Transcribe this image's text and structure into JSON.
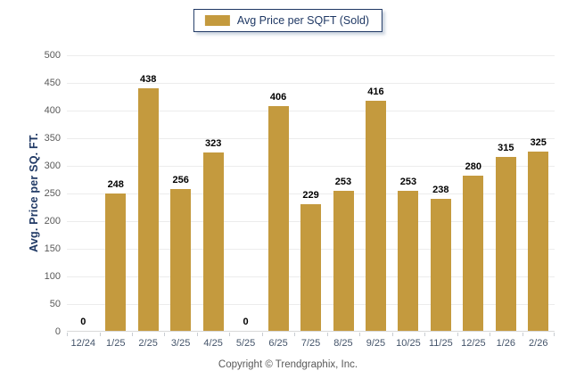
{
  "legend": {
    "label": "Avg Price per SQFT (Sold)",
    "swatch_color": "#C49A3E",
    "border_color": "#1F3864"
  },
  "chart_data": {
    "type": "bar",
    "title": "",
    "categories": [
      "12/24",
      "1/25",
      "2/25",
      "3/25",
      "4/25",
      "5/25",
      "6/25",
      "7/25",
      "8/25",
      "9/25",
      "10/25",
      "11/25",
      "12/25",
      "1/26",
      "2/26"
    ],
    "series": [
      {
        "name": "Avg Price per SQFT (Sold)",
        "values": [
          0,
          248,
          438,
          256,
          323,
          0,
          406,
          229,
          253,
          416,
          253,
          238,
          280,
          315,
          325
        ]
      }
    ],
    "xlabel": "",
    "ylabel": "Avg. Price per SQ. FT.",
    "ylim": [
      0,
      500
    ],
    "yticks": [
      0,
      50,
      100,
      150,
      200,
      250,
      300,
      350,
      400,
      450,
      500
    ],
    "grid": "horizontal",
    "legend_position": "top-center",
    "bar_color": "#C49A3E",
    "data_labels_shown": true
  },
  "footer": {
    "copyright": "Copyright © Trendgraphix, Inc."
  },
  "colors": {
    "background": "#FFFFFF",
    "bar": "#C49A3E",
    "legend_border": "#1F3864",
    "legend_text": "#1F3864",
    "y_axis_title_text": "#1F3864",
    "y_tick_text": "#595959",
    "x_tick_text": "#44546A",
    "gridline": "#ECECEC",
    "axis_line": "#D9D9D9",
    "data_label_text": "#000000",
    "copyright_text": "#595959"
  }
}
